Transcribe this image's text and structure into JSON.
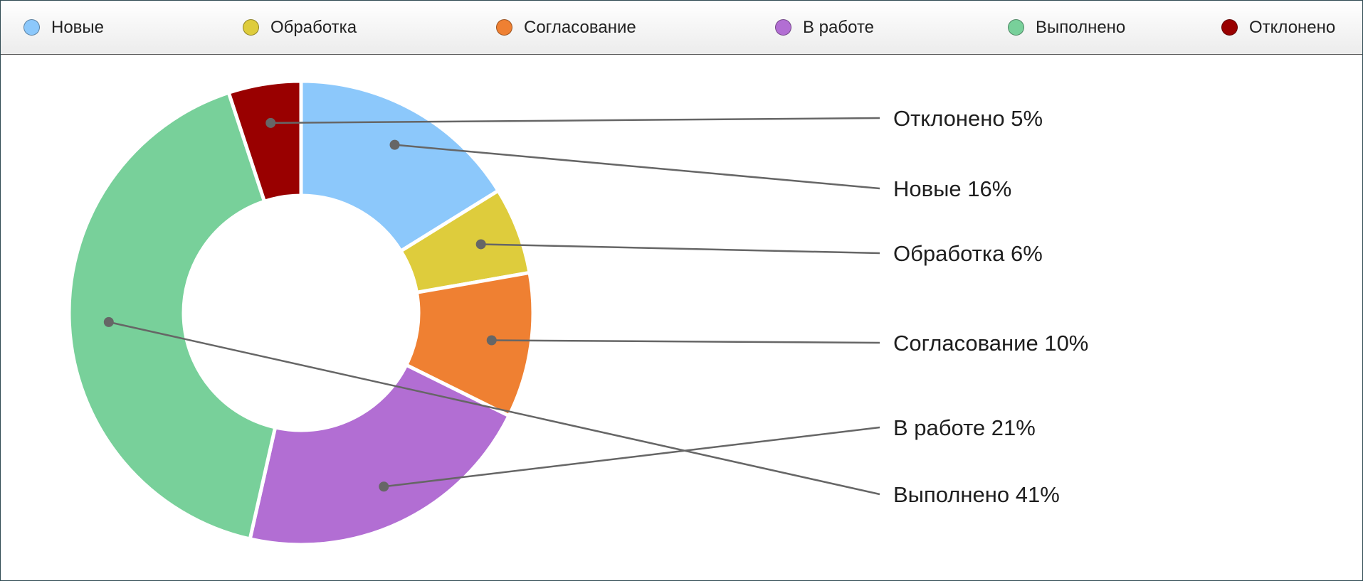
{
  "chart_data": {
    "type": "pie",
    "variant": "donut",
    "title": "",
    "legend_position": "top",
    "categories": [
      "Новые",
      "Обработка",
      "Согласование",
      "В работе",
      "Выполнено",
      "Отклонено"
    ],
    "values": [
      16,
      6,
      10,
      21,
      41,
      5
    ],
    "unit": "%",
    "colors": [
      "#8cc8fb",
      "#decc3c",
      "#ef8032",
      "#b26ed3",
      "#78d09a",
      "#990000"
    ],
    "data_labels": [
      "Новые 16%",
      "Обработка 6%",
      "Согласование 10%",
      "В работе 21%",
      "Выполнено 41%",
      "Отклонено 5%"
    ]
  },
  "legend": {
    "items": [
      {
        "label": "Новые",
        "color": "#8cc8fb"
      },
      {
        "label": "Обработка",
        "color": "#decc3c"
      },
      {
        "label": "Согласование",
        "color": "#ef8032"
      },
      {
        "label": "В работе",
        "color": "#b26ed3"
      },
      {
        "label": "Выполнено",
        "color": "#78d09a"
      },
      {
        "label": "Отклонено",
        "color": "#990000"
      }
    ]
  }
}
